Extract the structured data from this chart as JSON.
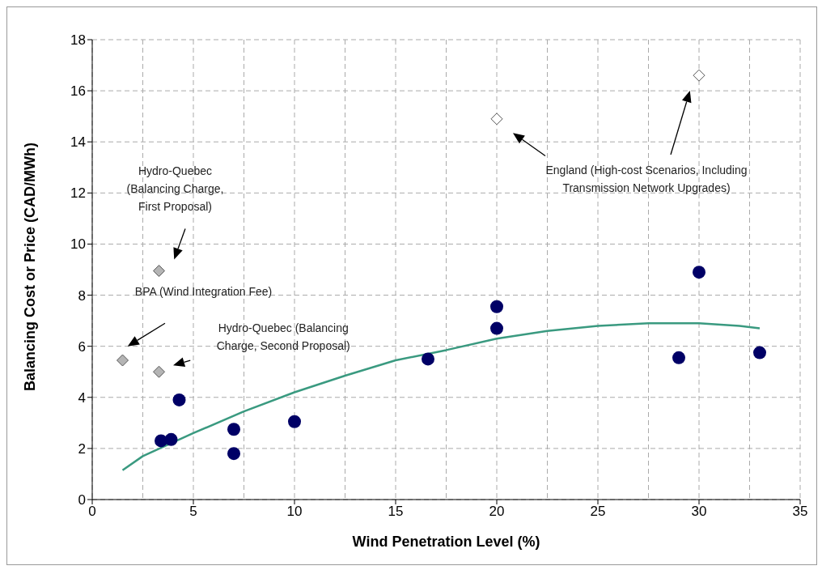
{
  "chart_data": {
    "type": "scatter",
    "xlabel": "Wind Penetration Level (%)",
    "ylabel": "Balancing Cost or Price (CAD/MWh)",
    "xlim": [
      0,
      35
    ],
    "xticks": [
      0,
      5,
      10,
      15,
      20,
      25,
      30,
      35
    ],
    "ylim": [
      0,
      18
    ],
    "yticks": [
      0,
      2,
      4,
      6,
      8,
      10,
      12,
      14,
      16,
      18
    ],
    "grid": true,
    "series": [
      {
        "marker": "circle",
        "color": "#000066",
        "x": [
          3.4,
          3.9,
          4.3,
          7,
          7,
          10,
          16.6,
          20,
          20,
          29,
          30,
          33
        ],
        "values": [
          2.3,
          2.35,
          3.9,
          2.75,
          1.8,
          3.05,
          5.5,
          6.7,
          7.55,
          5.55,
          8.9,
          5.75
        ]
      },
      {
        "marker": "diamond",
        "color": "#b4b4b4",
        "x": [
          1.5,
          3.3,
          3.3
        ],
        "values": [
          5.45,
          5.0,
          8.95
        ]
      },
      {
        "marker": "diamond",
        "color": "#ffffff",
        "x": [
          20,
          30
        ],
        "values": [
          14.9,
          16.6
        ]
      },
      {
        "type": "line",
        "marker": "none",
        "color": "#3a9a80",
        "x": [
          1.5,
          2.5,
          5,
          7.5,
          10,
          12.5,
          15,
          17.5,
          20,
          22.5,
          25,
          27.5,
          30,
          32,
          33
        ],
        "values": [
          1.15,
          1.7,
          2.6,
          3.45,
          4.2,
          4.85,
          5.45,
          5.85,
          6.3,
          6.6,
          6.8,
          6.9,
          6.9,
          6.8,
          6.7
        ]
      }
    ],
    "annotations": [
      "Hydro-Quebec\n(Balancing Charge,\nFirst Proposal)",
      "BPA (Wind Integration Fee)",
      "Hydro-Quebec (Balancing\nCharge, Second Proposal)",
      "England (High-cost Scenarios, Including\nTransmission Network Upgrades)"
    ]
  }
}
